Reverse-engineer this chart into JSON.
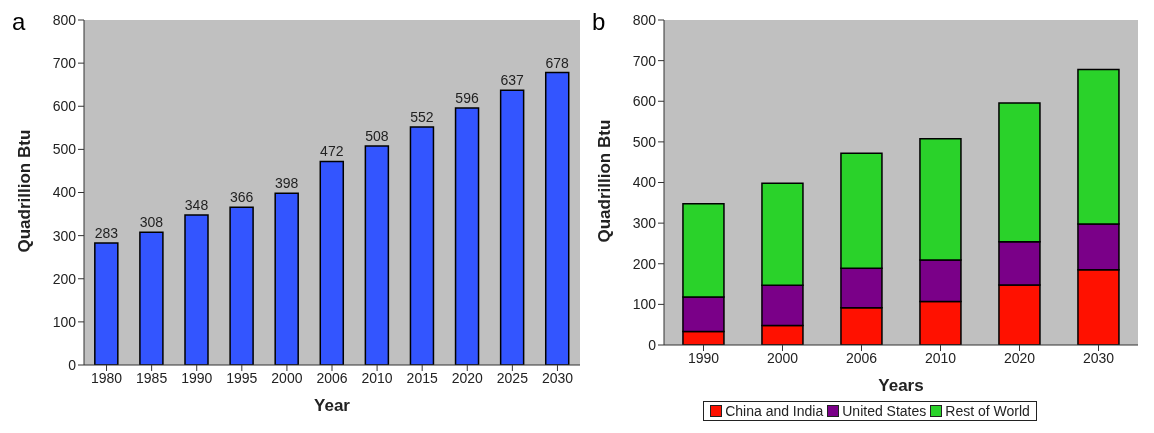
{
  "chart_data": [
    {
      "type": "bar",
      "annotations": [
        "a"
      ],
      "xlabel": "Year",
      "ylabel": "Quadrillion Btu",
      "categories": [
        "1980",
        "1985",
        "1990",
        "1995",
        "2000",
        "2006",
        "2010",
        "2015",
        "2020",
        "2025",
        "2030"
      ],
      "values": [
        283,
        308,
        348,
        366,
        398,
        472,
        508,
        552,
        596,
        637,
        678
      ],
      "color": "#3355ff",
      "data_labels": true,
      "ylim": [
        0,
        800
      ],
      "yticks": [
        0,
        100,
        200,
        300,
        400,
        500,
        600,
        700,
        800
      ],
      "grid": false,
      "legend": false
    },
    {
      "type": "bar",
      "annotations": [
        "b"
      ],
      "xlabel": "Years",
      "ylabel": "Quadrillion Btu",
      "categories": [
        "1990",
        "2000",
        "2006",
        "2010",
        "2020",
        "2030"
      ],
      "stacked": true,
      "series": [
        {
          "name": "China and India",
          "color": "#ff1100",
          "values": [
            33,
            48,
            92,
            107,
            148,
            185
          ]
        },
        {
          "name": "United States",
          "color": "#7a0088",
          "values": [
            85,
            99,
            97,
            102,
            106,
            113
          ]
        },
        {
          "name": "Rest of World",
          "color": "#2ad22a",
          "values": [
            230,
            251,
            283,
            299,
            342,
            380
          ]
        }
      ],
      "ylim": [
        0,
        800
      ],
      "yticks": [
        0,
        100,
        200,
        300,
        400,
        500,
        600,
        700,
        800
      ],
      "grid": false,
      "legend": "bottom"
    }
  ]
}
